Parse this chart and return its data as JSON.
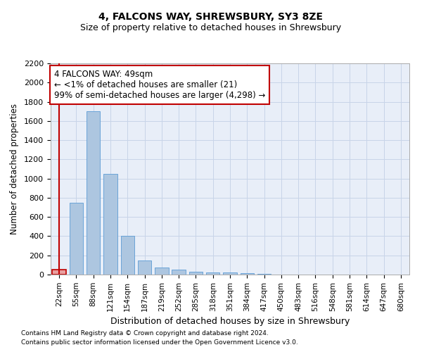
{
  "title1": "4, FALCONS WAY, SHREWSBURY, SY3 8ZE",
  "title2": "Size of property relative to detached houses in Shrewsbury",
  "xlabel": "Distribution of detached houses by size in Shrewsbury",
  "ylabel": "Number of detached properties",
  "categories": [
    "22sqm",
    "55sqm",
    "88sqm",
    "121sqm",
    "154sqm",
    "187sqm",
    "219sqm",
    "252sqm",
    "285sqm",
    "318sqm",
    "351sqm",
    "384sqm",
    "417sqm",
    "450sqm",
    "483sqm",
    "516sqm",
    "548sqm",
    "581sqm",
    "614sqm",
    "647sqm",
    "680sqm"
  ],
  "values": [
    50,
    750,
    1700,
    1050,
    400,
    150,
    75,
    50,
    30,
    20,
    20,
    15,
    5,
    0,
    0,
    0,
    0,
    0,
    0,
    0,
    0
  ],
  "bar_color": "#adc6e0",
  "bar_edge_color": "#5b9bd5",
  "highlight_bar_index": 0,
  "highlight_bar_color": "#e8a0a0",
  "highlight_bar_edge_color": "#c00000",
  "annotation_text": "4 FALCONS WAY: 49sqm\n← <1% of detached houses are smaller (21)\n99% of semi-detached houses are larger (4,298) →",
  "annotation_box_facecolor": "#ffffff",
  "annotation_box_edgecolor": "#c00000",
  "ylim": [
    0,
    2200
  ],
  "yticks": [
    0,
    200,
    400,
    600,
    800,
    1000,
    1200,
    1400,
    1600,
    1800,
    2000,
    2200
  ],
  "background_color": "#ffffff",
  "plot_bg_color": "#e8eef8",
  "grid_color": "#c8d4e8",
  "footnote1": "Contains HM Land Registry data © Crown copyright and database right 2024.",
  "footnote2": "Contains public sector information licensed under the Open Government Licence v3.0."
}
